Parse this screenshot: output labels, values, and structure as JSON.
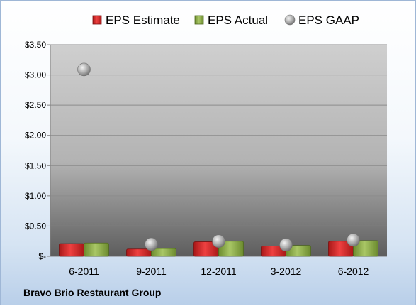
{
  "company": "Bravo Brio Restaurant Group",
  "chart_data": {
    "type": "bar",
    "categories": [
      "6-2011",
      "9-2011",
      "12-2011",
      "3-2012",
      "6-2012"
    ],
    "series": [
      {
        "name": "EPS Estimate",
        "kind": "bar",
        "color": "#d92b2b",
        "values": [
          0.21,
          0.12,
          0.24,
          0.17,
          0.25
        ]
      },
      {
        "name": "EPS Actual",
        "kind": "bar",
        "color": "#8fb04a",
        "values": [
          0.22,
          0.13,
          0.25,
          0.18,
          0.26
        ]
      },
      {
        "name": "EPS GAAP",
        "kind": "marker",
        "color": "#a8a8a8",
        "values": [
          3.09,
          0.2,
          0.25,
          0.19,
          0.27
        ]
      }
    ],
    "ylim": [
      0,
      3.5
    ],
    "yticks": [
      0,
      0.5,
      1.0,
      1.5,
      2.0,
      2.5,
      3.0,
      3.5
    ],
    "ytick_labels": [
      "$-",
      "$0.50",
      "$1.00",
      "$1.50",
      "$2.00",
      "$2.50",
      "$3.00",
      "$3.50"
    ],
    "grid": true,
    "legend": "top"
  }
}
